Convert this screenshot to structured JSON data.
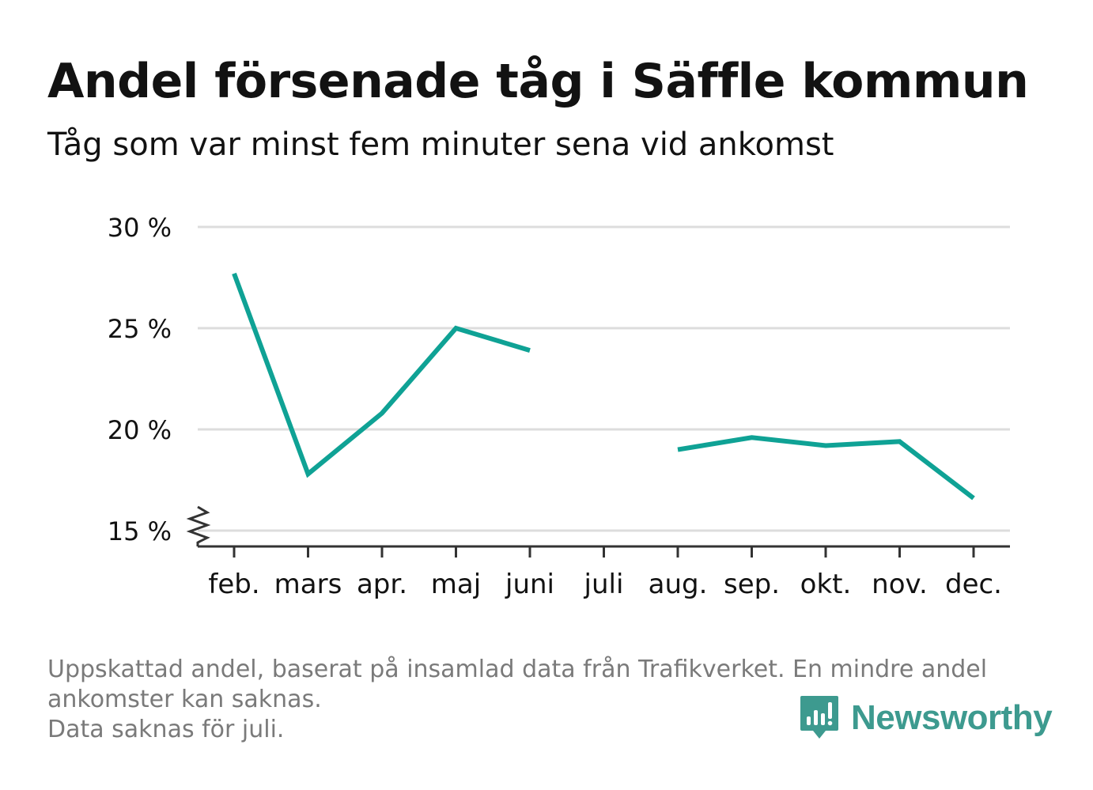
{
  "title": "Andel försenade tåg i Säffle kommun",
  "subtitle": "Tåg som var minst fem minuter sena vid ankomst",
  "footnote": [
    "Uppskattad andel, baserat på insamlad data från Trafikverket. En mindre andel",
    "ankomster kan saknas.",
    "Data saknas för juli."
  ],
  "brand": {
    "name": "Newsworthy",
    "color": "#3d9a8f",
    "icon": "newsworthy-chart-bubble-icon"
  },
  "colors": {
    "line": "#0fa295",
    "grid": "#dddddd",
    "axis": "#333333",
    "text": "#121212",
    "muted": "#7a7a7a"
  },
  "chart_data": {
    "type": "line",
    "categories": [
      "feb.",
      "mars",
      "apr.",
      "maj",
      "juni",
      "juli",
      "aug.",
      "sep.",
      "okt.",
      "nov.",
      "dec."
    ],
    "series": [
      {
        "values": [
          27.7,
          17.8,
          20.8,
          25.0,
          23.9,
          null,
          19.0,
          19.6,
          19.2,
          19.4,
          16.6
        ]
      }
    ],
    "yticks": [
      15,
      20,
      25,
      30
    ],
    "ytick_labels": [
      "15 %",
      "20 %",
      "25 %",
      "30 %"
    ],
    "ylim": [
      15,
      30
    ],
    "y_axis_break": true,
    "grid": true,
    "legend": "none",
    "xlabel": "",
    "ylabel": ""
  }
}
